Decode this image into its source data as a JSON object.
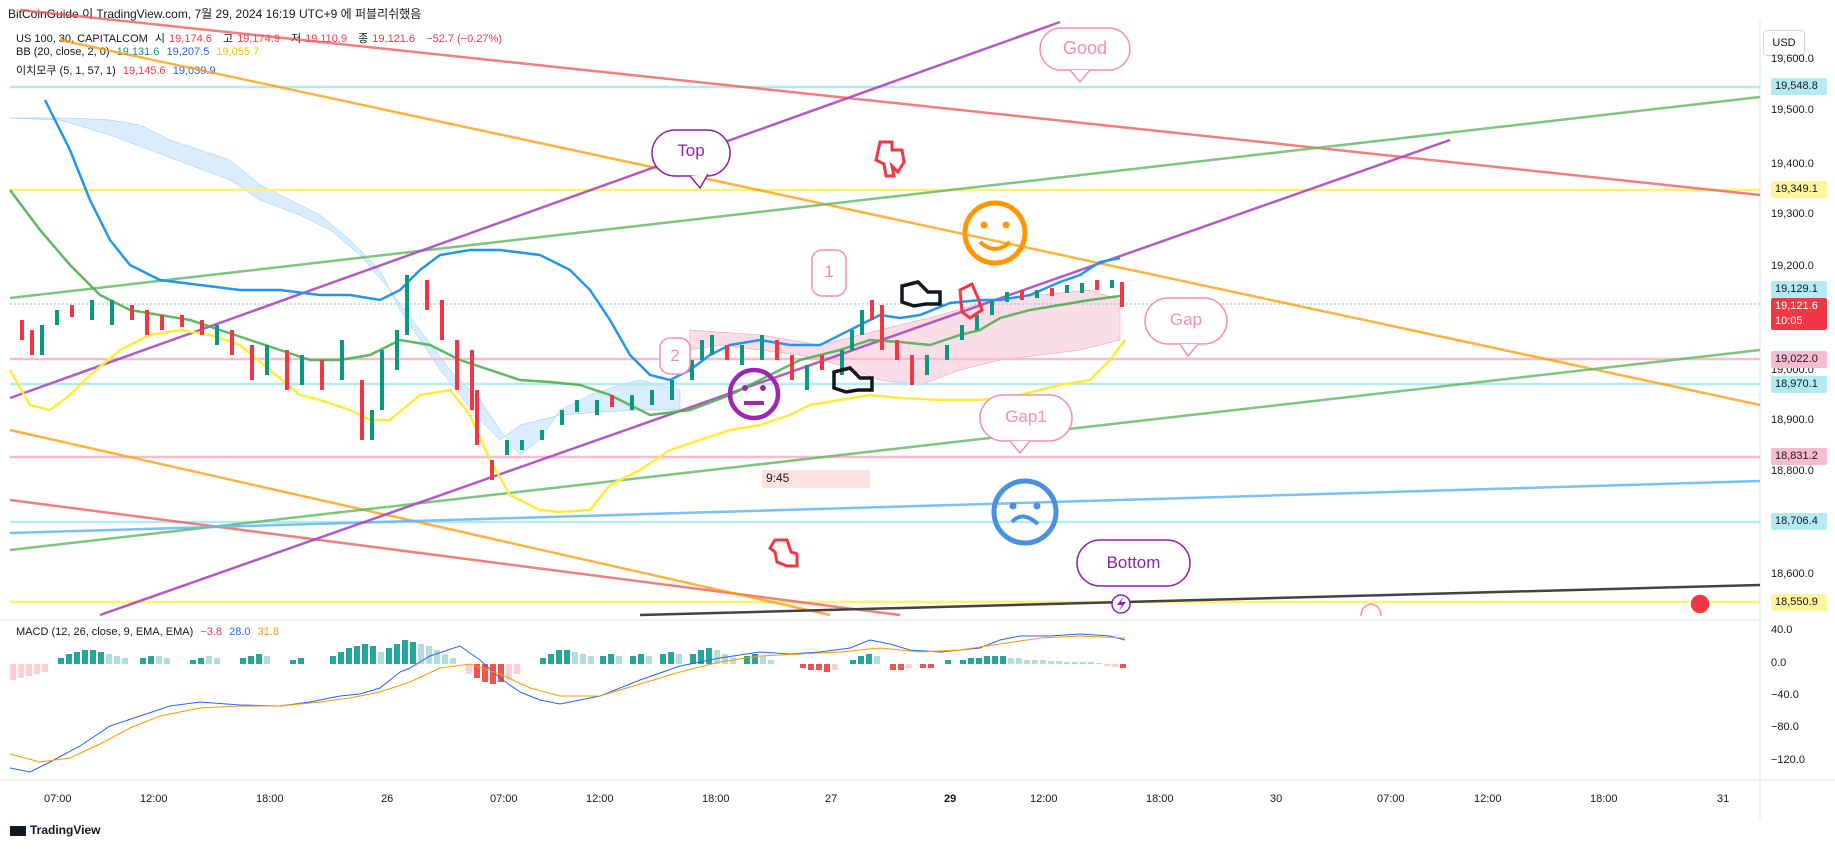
{
  "header": {
    "author": "BitCoinGuide",
    "text": "이 TradingView.com, 7월 29, 2024 16:19 UTC+9 에 퍼블리쉬했음"
  },
  "symbol_legend": {
    "name": "US 100, 30, CAPITALCOM",
    "o_label": "시",
    "o_value": "19,174.6",
    "h_label": "고",
    "h_value": "19,174.9",
    "l_label": "저",
    "l_value": "19,110.9",
    "c_label": "종",
    "c_value": "19,121.6",
    "change": "−52.7 (−0.27%)"
  },
  "bb_legend": {
    "name": "BB (20, close, 2, 0)",
    "v1": "19,131.6",
    "v2": "19,207.5",
    "v3": "19,055.7"
  },
  "ichimoku_legend": {
    "name": "이치모쿠 (5, 1, 57, 1)",
    "v1": "19,145.6",
    "v2": "19,039.9"
  },
  "macd_legend": {
    "name": "MACD (12, 26, close, 9, EMA, EMA)",
    "v1": "−3.8",
    "v2": "28.0",
    "v3": "31.8"
  },
  "currency_button": "USD",
  "price_axis": [
    "19,600.0",
    "19,500.0",
    "19,400.0",
    "19,300.0",
    "19,200.0",
    "19,000.0",
    "18,900.0",
    "18,800.0",
    "18,600.0"
  ],
  "price_labels": [
    {
      "text": "19,548.8",
      "bg": "#b2ebf2",
      "fg": "#131722"
    },
    {
      "text": "19,349.1",
      "bg": "#fff59d",
      "fg": "#131722"
    },
    {
      "text": "19,129.1",
      "bg": "#b2ebf2",
      "fg": "#131722"
    },
    {
      "text": "19,121.6",
      "bg": "#f23645",
      "fg": "#ffffff"
    },
    {
      "text": "10:05",
      "bg": "#f23645",
      "fg": "#ffffff"
    },
    {
      "text": "19,022.0",
      "bg": "#f8bbd0",
      "fg": "#131722"
    },
    {
      "text": "18,970.1",
      "bg": "#b2ebf2",
      "fg": "#131722"
    },
    {
      "text": "18,831.2",
      "bg": "#f8bbd0",
      "fg": "#131722"
    },
    {
      "text": "18,706.4",
      "bg": "#b2ebf2",
      "fg": "#131722"
    },
    {
      "text": "18,550.9",
      "bg": "#fff59d",
      "fg": "#131722"
    }
  ],
  "macd_axis": [
    "40.0",
    "0.0",
    "−40.0",
    "−80.0",
    "−120.0"
  ],
  "time_axis": [
    "07:00",
    "12:00",
    "18:00",
    "26",
    "07:00",
    "12:00",
    "18:00",
    "27",
    "29",
    "12:00",
    "18:00",
    "30",
    "07:00",
    "12:00",
    "18:00",
    "31"
  ],
  "annotations": {
    "good": "Good",
    "top": "Top",
    "gap": "Gap",
    "gap1": "Gap1",
    "bottom": "Bottom",
    "one": "1",
    "two": "2",
    "time_box": "9:45"
  },
  "footer": "TradingView"
}
